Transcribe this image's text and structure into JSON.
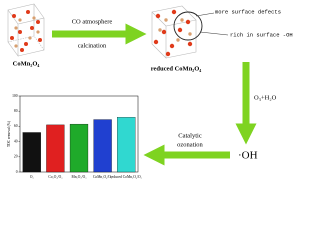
{
  "left_material": "CoMn₂O₄",
  "step1": {
    "top": "CO atmosphere",
    "bottom": "calcination"
  },
  "right_material": "reduced CoMn₂O₄",
  "callouts": [
    "more surface defects",
    "rich in surface -OH"
  ],
  "step2": "O₃+H₂O",
  "radical": "·OH",
  "step3": {
    "top": "Catalytic",
    "bottom": "ozonation"
  },
  "inset_chart": {
    "type": "bar",
    "y_label": "TOC removal (%)",
    "categories": [
      "O₃",
      "Co₃O₄/O₃",
      "Mn₂O₃/O₃",
      "CoMn₂O₄/O₃",
      "reduced CoMn₂O₄/O₃"
    ],
    "values": [
      52,
      62,
      63,
      69,
      72
    ],
    "colors": [
      "#111111",
      "#e02020",
      "#1faa2a",
      "#2040d0",
      "#30d8d0"
    ],
    "ylim": [
      0,
      100
    ],
    "yticks": [
      0,
      20,
      40,
      60,
      80,
      100
    ]
  }
}
